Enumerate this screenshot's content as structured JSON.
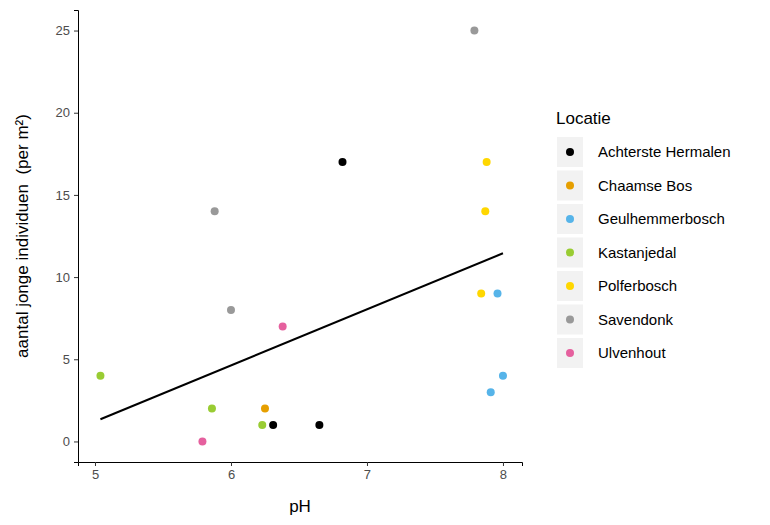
{
  "chart_data": {
    "type": "scatter",
    "x_label": "pH",
    "y_label": "aantal jonge individuen  (per m²)",
    "legend_title": "Locatie",
    "legend": "right",
    "xlim": [
      4.875,
      8.14
    ],
    "ylim": [
      -1.25,
      26.25
    ],
    "xticks": [
      5,
      6,
      7,
      8
    ],
    "yticks": [
      0,
      5,
      10,
      15,
      20,
      25
    ],
    "series": [
      {
        "name": "Achterste Hermalen",
        "color": "#000000",
        "x": [
          6.82,
          6.31,
          6.65
        ],
        "values": [
          17,
          1,
          1
        ]
      },
      {
        "name": "Chaamse Bos",
        "color": "#E69F00",
        "x": [
          6.25
        ],
        "values": [
          2
        ]
      },
      {
        "name": "Geulhemmerbosch",
        "color": "#56B4E9",
        "x": [
          7.96,
          8.0,
          7.91
        ],
        "values": [
          9,
          4,
          3
        ]
      },
      {
        "name": "Kastanjedal",
        "color": "#99CC33",
        "x": [
          5.04,
          5.86,
          6.23
        ],
        "values": [
          4,
          2,
          1
        ]
      },
      {
        "name": "Polferbosch",
        "color": "#FFD700",
        "x": [
          7.88,
          7.87,
          7.84
        ],
        "values": [
          17,
          14,
          9
        ]
      },
      {
        "name": "Savendonk",
        "color": "#999999",
        "x": [
          7.79,
          5.88,
          6.0
        ],
        "values": [
          25,
          14,
          8
        ]
      },
      {
        "name": "Ulvenhout",
        "color": "#E5609E",
        "x": [
          6.38,
          5.79
        ],
        "values": [
          7,
          0
        ]
      }
    ],
    "trend_line": {
      "type": "line",
      "color": "#000000",
      "x": [
        5.04,
        8.0
      ],
      "values": [
        1.35,
        11.45
      ]
    }
  }
}
